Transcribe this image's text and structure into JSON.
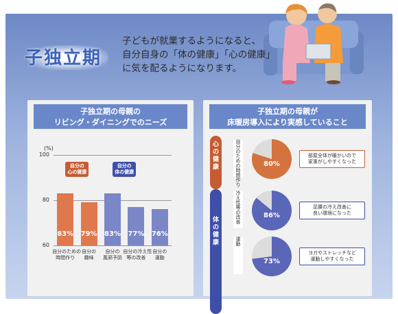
{
  "header": {
    "title": "子独立期",
    "intro_lines": [
      "子どもが就業するようになると、",
      "自分自身の「体の健康」「心の健康」",
      "に気を配るようになります。"
    ]
  },
  "left_panel": {
    "header_lines": [
      "子独立期の母親の",
      "リビング・ダイニングでのニーズ"
    ],
    "callouts": {
      "mind": "自分の\n心の健康",
      "body": "自分の\n体の健康"
    },
    "chart_data": {
      "type": "bar",
      "categories": [
        "自分のための\n時間作り",
        "自分の\n趣味",
        "自分の\n風邪予防",
        "自分の冷え性\n等の改善",
        "自分の\n運動"
      ],
      "values": [
        83,
        79,
        83,
        77,
        76
      ],
      "value_labels": [
        "83%",
        "79%",
        "83%",
        "77%",
        "76%"
      ],
      "ylim": [
        60,
        100
      ],
      "yunit": "(%)",
      "yticks": [
        "100",
        "80",
        "60"
      ],
      "colors": [
        "#e0784e",
        "#e0784e",
        "#7b86c6",
        "#7b86c6",
        "#7b86c6"
      ]
    }
  },
  "right_panel": {
    "header_lines": [
      "子独立期の母親が",
      "床暖房導入により実感していること"
    ],
    "groups": [
      {
        "label": "心の健康",
        "color": "#c55c33"
      },
      {
        "label": "体の健康",
        "color": "#3f4fa8"
      }
    ],
    "rows": [
      {
        "label": "自分のための時間作り",
        "value": 80,
        "pct": "80%",
        "color": "#d4733f",
        "note": "部屋全体が暖かいので\n家事がしやすくなった"
      },
      {
        "label": "冷え性等の改善",
        "value": 86,
        "pct": "86%",
        "color": "#5a66b8",
        "note": "足腰の冷え改善に\n良い環境になった"
      },
      {
        "label": "運動",
        "value": 73,
        "pct": "73%",
        "color": "#5a66b8",
        "note": "ヨガやストレッチなど\n運動しやすくなった"
      }
    ]
  },
  "colors": {
    "mind": "#c55c33",
    "body": "#3f4fa8",
    "header_bar": "#6a88c9"
  }
}
